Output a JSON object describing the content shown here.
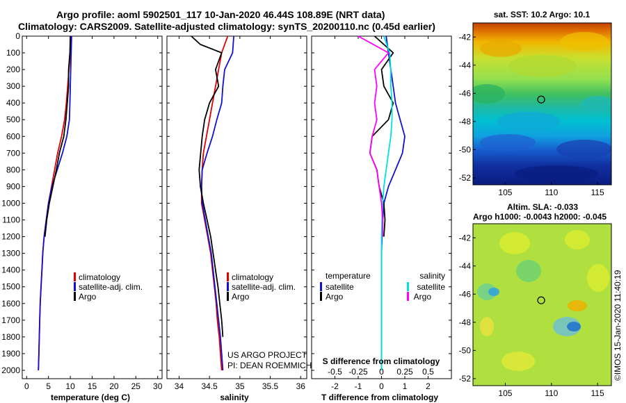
{
  "title_line1": "Argo profile: aoml 5902501_117 10-Jan-2020 46.44S 108.89E (NRT data)",
  "title_line2": "Climatology: CARS2009. Satellite-adjusted climatology: synTS_20200110.nc (0.45d earlier)",
  "colors": {
    "argo": "#000000",
    "climatology": "#e00000",
    "satellite": "#1010d0",
    "salinity_sat": "#00e0e0",
    "salinity_argo": "#ff00ff"
  },
  "chart_data": [
    {
      "type": "line",
      "xlabel": "temperature (deg C)",
      "xlim": [
        -1,
        31
      ],
      "xticks": [
        0,
        5,
        10,
        15,
        20,
        25,
        30
      ],
      "xtick_labels": [
        "0",
        "5",
        "10",
        "15",
        "20",
        "25",
        "30"
      ],
      "ylim": [
        2050,
        0
      ],
      "yticks": [
        0,
        100,
        200,
        300,
        400,
        500,
        600,
        700,
        800,
        900,
        1000,
        1100,
        1200,
        1300,
        1400,
        1500,
        1600,
        1700,
        1800,
        1900,
        2000
      ],
      "legend": [
        "climatology",
        "satellite-adj. clim.",
        "Argo"
      ],
      "legend_position": "lower-right",
      "series": [
        {
          "name": "climatology",
          "color": "#e00000",
          "x": [
            10.2,
            10.0,
            9.7,
            9.4,
            9.1,
            8.7,
            8.0,
            7.1,
            6.4,
            5.7,
            5.0,
            4.5,
            4.0,
            3.7,
            3.5,
            3.3,
            3.1,
            3.0,
            2.9,
            2.8,
            2.7
          ],
          "y": [
            0,
            100,
            200,
            300,
            400,
            500,
            600,
            700,
            800,
            900,
            1000,
            1100,
            1200,
            1300,
            1400,
            1500,
            1600,
            1700,
            1800,
            1900,
            2000
          ]
        },
        {
          "name": "satellite-adj. clim.",
          "color": "#1010d0",
          "x": [
            10.3,
            10.2,
            10.1,
            10.0,
            9.9,
            9.8,
            9.2,
            8.2,
            7.0,
            5.8,
            5.0,
            4.5,
            4.0,
            3.7,
            3.5,
            3.3,
            3.1,
            3.0,
            2.9,
            2.8,
            2.7
          ],
          "y": [
            0,
            100,
            200,
            300,
            400,
            500,
            600,
            700,
            800,
            900,
            1000,
            1100,
            1200,
            1300,
            1400,
            1500,
            1600,
            1700,
            1800,
            1900,
            2000
          ]
        },
        {
          "name": "Argo",
          "color": "#000000",
          "x": [
            10.0,
            9.9,
            9.6,
            9.6,
            9.3,
            9.0,
            8.5,
            7.5,
            6.8,
            6.0,
            5.2,
            4.6,
            4.2
          ],
          "y": [
            0,
            100,
            200,
            300,
            400,
            500,
            600,
            700,
            800,
            900,
            1000,
            1100,
            1200
          ]
        }
      ]
    },
    {
      "type": "line",
      "xlabel": "salinity",
      "xlim": [
        33.8,
        36.1
      ],
      "xticks": [
        34,
        34.5,
        35,
        35.5,
        36
      ],
      "xtick_labels": [
        "34",
        "34.5",
        "35",
        "35.5",
        "36"
      ],
      "ylim": [
        2050,
        0
      ],
      "legend": [
        "climatology",
        "satellite-adj. clim.",
        "Argo"
      ],
      "legend_position": "lower-right",
      "annotations": [
        "US ARGO PROJECT",
        "PI: DEAN ROEMMICH"
      ],
      "series": [
        {
          "name": "climatology",
          "color": "#e00000",
          "x": [
            34.8,
            34.7,
            34.65,
            34.6,
            34.55,
            34.5,
            34.45,
            34.4,
            34.38,
            34.37,
            34.37,
            34.42,
            34.47,
            34.52,
            34.55,
            34.58,
            34.61,
            34.63,
            34.66,
            34.68,
            34.7
          ],
          "y": [
            0,
            100,
            200,
            300,
            400,
            500,
            600,
            700,
            800,
            900,
            1000,
            1100,
            1200,
            1300,
            1400,
            1500,
            1600,
            1700,
            1800,
            1900,
            2000
          ]
        },
        {
          "name": "satellite-adj. clim.",
          "color": "#1010d0",
          "x": [
            34.9,
            34.88,
            34.75,
            34.72,
            34.7,
            34.62,
            34.55,
            34.46,
            34.38,
            34.37,
            34.38,
            34.43,
            34.48,
            34.53,
            34.56,
            34.59,
            34.62,
            34.65,
            34.68,
            34.7,
            34.72
          ],
          "y": [
            0,
            100,
            200,
            300,
            400,
            500,
            600,
            700,
            800,
            900,
            1000,
            1100,
            1200,
            1300,
            1400,
            1500,
            1600,
            1700,
            1800,
            1900,
            2000
          ]
        },
        {
          "name": "Argo",
          "color": "#000000",
          "x": [
            34.2,
            34.35,
            34.7,
            34.6,
            34.65,
            34.5,
            34.42,
            34.38,
            34.33,
            34.35,
            34.4,
            34.46,
            34.52,
            34.56,
            34.6,
            34.64,
            34.67,
            34.7,
            34.72
          ],
          "y": [
            0,
            50,
            100,
            200,
            300,
            400,
            500,
            600,
            800,
            900,
            1000,
            1100,
            1200,
            1300,
            1400,
            1500,
            1600,
            1700,
            1800
          ]
        }
      ]
    },
    {
      "type": "line",
      "xlabel": "T difference from climatology",
      "xlim": [
        -3,
        3
      ],
      "xticks": [
        -2,
        -1,
        0,
        1,
        2
      ],
      "xtick_labels": [
        "-2",
        "-1",
        "0",
        "1",
        "2"
      ],
      "secondary_xlabel": "S difference from climatology",
      "secondary_xticks": [
        -0.5,
        -0.25,
        0,
        0.25,
        0.5
      ],
      "secondary_xtick_labels": [
        "-0.5",
        "-0.25",
        "0",
        "0.25",
        "0.5"
      ],
      "ylim": [
        2050,
        0
      ],
      "legend": {
        "temperature_title": "temperature",
        "salinity_title": "salinity",
        "temperature": [
          "satellite",
          "Argo"
        ],
        "salinity": [
          "satellite",
          "Argo"
        ]
      },
      "series": [
        {
          "name": "temperature satellite",
          "color": "#1010d0",
          "x": [
            0.2,
            0.3,
            0.4,
            0.5,
            0.6,
            0.8,
            1.0,
            0.9,
            0.6,
            0.3,
            0.1,
            0.05,
            0.02,
            0.0,
            0.0,
            0.0,
            0.0,
            0.0,
            0.0,
            0.0,
            0.0
          ],
          "y": [
            0,
            100,
            200,
            300,
            400,
            500,
            600,
            700,
            800,
            900,
            1000,
            1100,
            1200,
            1300,
            1400,
            1500,
            1600,
            1700,
            1800,
            1900,
            2000
          ]
        },
        {
          "name": "temperature Argo",
          "color": "#000000",
          "x": [
            -0.3,
            0.5,
            0.0,
            0.1,
            0.5,
            0.3,
            -0.4,
            -0.5,
            -0.2,
            -0.1,
            0.1,
            0.15,
            0.1
          ],
          "y": [
            0,
            100,
            200,
            300,
            400,
            500,
            600,
            700,
            800,
            900,
            1000,
            1100,
            1200
          ]
        },
        {
          "name": "salinity satellite",
          "color": "#00e0e0",
          "x": [
            0.1,
            0.35,
            0.4,
            0.4,
            0.45,
            0.45,
            0.4,
            0.3,
            0.2,
            0.1,
            0.05,
            0.02,
            0.0,
            0.0,
            0.0,
            0.0,
            0.0,
            0.0,
            0.0,
            0.0,
            0.0
          ],
          "y": [
            0,
            100,
            200,
            300,
            400,
            500,
            600,
            700,
            800,
            900,
            1000,
            1100,
            1200,
            1300,
            1400,
            1500,
            1600,
            1700,
            1800,
            1900,
            2000
          ]
        },
        {
          "name": "salinity Argo",
          "color": "#ff00ff",
          "x": [
            -1.0,
            0.3,
            -0.3,
            -0.2,
            -0.3,
            -0.2,
            -0.4,
            -0.5,
            -0.2,
            -0.1,
            0.0,
            0.05,
            0.05
          ],
          "y": [
            0,
            100,
            200,
            300,
            400,
            500,
            600,
            700,
            800,
            900,
            1000,
            1100,
            1200
          ]
        }
      ]
    },
    {
      "type": "heatmap",
      "title": "sat. SST: 10.2 Argo: 10.1",
      "xlim": [
        101.5,
        116.5
      ],
      "ylim": [
        -52.5,
        -41
      ],
      "xticks": [
        105,
        110,
        115
      ],
      "xtick_labels": [
        "105",
        "110",
        "115"
      ],
      "yticks": [
        -42,
        -44,
        -46,
        -48,
        -50,
        -52
      ],
      "ytick_labels": [
        "-42",
        "-44",
        "-46",
        "-48",
        "-50",
        "-52"
      ],
      "marker": {
        "x": 108.89,
        "y": -46.44
      }
    },
    {
      "type": "heatmap",
      "title": "Altim. SLA: -0.033",
      "subtitle": "Argo h1000: -0.0043 h2000: -0.045",
      "xlim": [
        101.5,
        116.5
      ],
      "ylim": [
        -52.5,
        -41
      ],
      "xticks": [
        105,
        110,
        115
      ],
      "xtick_labels": [
        "105",
        "110",
        "115"
      ],
      "yticks": [
        -42,
        -44,
        -46,
        -48,
        -50,
        -52
      ],
      "ytick_labels": [
        "-42",
        "-44",
        "-46",
        "-48",
        "-50",
        "-52"
      ],
      "marker": {
        "x": 108.89,
        "y": -46.44
      }
    }
  ],
  "credit": "©IMOS 15-Jan-2020 11:40:19"
}
